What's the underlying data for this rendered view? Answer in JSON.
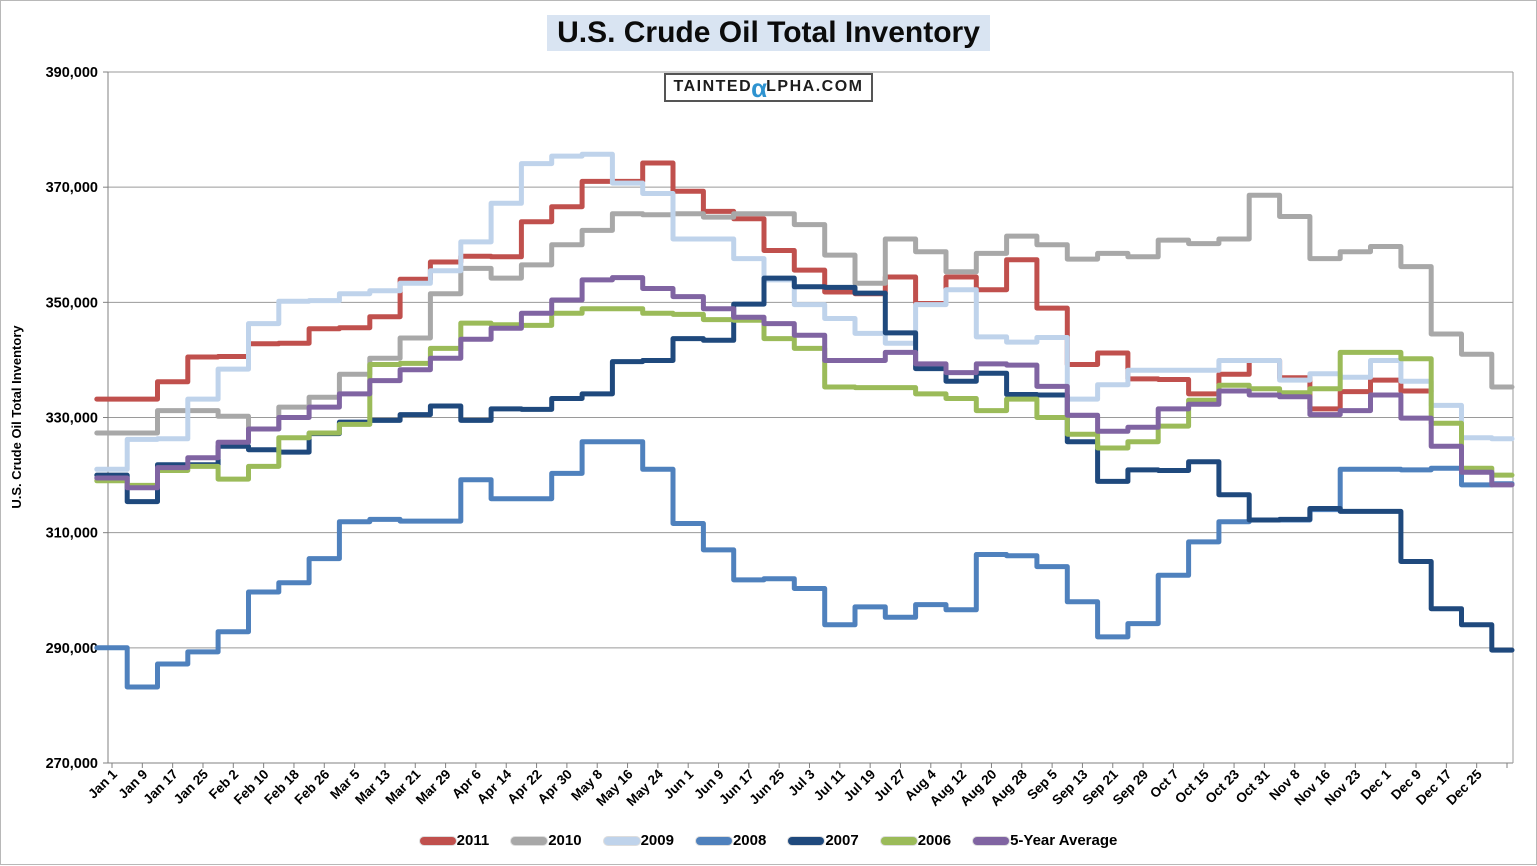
{
  "header": {
    "title": "U.S. Crude Oil Total Inventory",
    "watermark": {
      "prefix": "TAINTED",
      "alpha": "α",
      "suffix": "LPHA.COM"
    }
  },
  "colors": {
    "title_highlight": "#d9e4f2",
    "watermark_alpha": "#2e93d0",
    "gridline": "#9a9a9a",
    "axis": "#808080"
  },
  "chart_data": {
    "type": "line",
    "step": true,
    "title": "U.S. Crude Oil Total Inventory",
    "xlabel": "",
    "ylabel": "U.S. Crude Oil Total Inventory",
    "ylim": [
      270000,
      390000
    ],
    "ytick_step": 20000,
    "ytick_labels": [
      "390,000",
      "370,000",
      "350,000",
      "330,000",
      "310,000",
      "290,000",
      "270,000"
    ],
    "grid": "horizontal",
    "legend_position": "bottom",
    "categories": [
      "Jan 1",
      "Jan 9",
      "Jan 17",
      "Jan 25",
      "Feb 2",
      "Feb 10",
      "Feb 18",
      "Feb 26",
      "Mar 5",
      "Mar 13",
      "Mar 21",
      "Mar 29",
      "Apr 6",
      "Apr 14",
      "Apr 22",
      "Apr 30",
      "May 8",
      "May 16",
      "May 24",
      "Jun 1",
      "Jun 9",
      "Jun 17",
      "Jun 25",
      "Jul 3",
      "Jul 11",
      "Jul 19",
      "Jul 27",
      "Aug 4",
      "Aug 12",
      "Aug 20",
      "Aug 28",
      "Sep 5",
      "Sep 13",
      "Sep 21",
      "Sep 29",
      "Oct 7",
      "Oct 15",
      "Oct 23",
      "Oct 31",
      "Nov 8",
      "Nov 16",
      "Nov 23",
      "Dec 1",
      "Dec 9",
      "Dec 17",
      "Dec 25",
      ""
    ],
    "series": [
      {
        "name": "2011",
        "color": "#c0504d",
        "values": [
          333200,
          333200,
          336200,
          340500,
          340600,
          342800,
          342900,
          345400,
          345600,
          347500,
          354000,
          357000,
          358000,
          357900,
          364000,
          366600,
          371000,
          371000,
          374200,
          369300,
          365800,
          364500,
          359000,
          355600,
          351800,
          351500,
          354400,
          349800,
          354400,
          352200,
          357400,
          349000,
          339200,
          341200,
          336700,
          336600,
          334100,
          337500,
          339900,
          336900,
          331500,
          334500,
          336500,
          334600,
          null,
          null,
          null
        ]
      },
      {
        "name": "2010",
        "color": "#a8a8a8",
        "values": [
          327300,
          327300,
          331200,
          331200,
          330200,
          328000,
          331800,
          333500,
          337500,
          340300,
          343800,
          351500,
          355900,
          354200,
          356500,
          360000,
          362500,
          365400,
          365200,
          365400,
          364800,
          365400,
          365400,
          363500,
          358200,
          353300,
          361000,
          358800,
          355300,
          358500,
          361500,
          360000,
          357500,
          358500,
          357900,
          360800,
          360200,
          361000,
          368600,
          364900,
          357600,
          358800,
          359700,
          356200,
          344500,
          341000,
          335300
        ]
      },
      {
        "name": "2009",
        "color": "#bfd3eb",
        "values": [
          321000,
          326200,
          326300,
          333200,
          338400,
          346300,
          350200,
          350300,
          351500,
          352000,
          353300,
          355500,
          360500,
          367200,
          374100,
          375400,
          375700,
          370700,
          368900,
          361000,
          361000,
          357600,
          353900,
          349600,
          347200,
          344600,
          342900,
          349600,
          352200,
          344000,
          343100,
          343900,
          333200,
          335700,
          338200,
          338200,
          338200,
          339900,
          339900,
          336500,
          337600,
          337000,
          339900,
          336300,
          332100,
          326500,
          326300
        ]
      },
      {
        "name": "2008",
        "color": "#4f81bd",
        "values": [
          290000,
          283200,
          287200,
          289300,
          292800,
          299700,
          301300,
          305500,
          311900,
          312300,
          312000,
          312000,
          319200,
          315900,
          315900,
          320300,
          325800,
          325800,
          321000,
          311600,
          307000,
          301800,
          302000,
          300300,
          294000,
          297100,
          295300,
          297500,
          296600,
          306200,
          306000,
          304100,
          298000,
          291900,
          294200,
          302600,
          308400,
          311900,
          312200,
          312200,
          314000,
          321000,
          321000,
          320900,
          321200,
          318300,
          318500
        ]
      },
      {
        "name": "2007",
        "color": "#1f497d",
        "values": [
          320000,
          315400,
          321800,
          321800,
          325000,
          324400,
          324000,
          327200,
          329200,
          329500,
          330500,
          332000,
          329500,
          331500,
          331400,
          333300,
          334100,
          339700,
          339900,
          343700,
          343400,
          349700,
          354200,
          352700,
          352600,
          351600,
          344700,
          338500,
          336300,
          337700,
          334000,
          333900,
          325800,
          318900,
          320900,
          320800,
          322300,
          316600,
          312200,
          312300,
          314200,
          313700,
          313700,
          305000,
          296800,
          294000,
          289600
        ]
      },
      {
        "name": "2006",
        "color": "#9bbb59",
        "values": [
          319000,
          318200,
          320800,
          321500,
          319300,
          321500,
          326500,
          327300,
          328800,
          339200,
          339400,
          342000,
          346400,
          346100,
          346000,
          348100,
          348900,
          348900,
          348100,
          347900,
          347000,
          346900,
          343700,
          342000,
          335300,
          335200,
          335200,
          334100,
          333300,
          331200,
          333200,
          330000,
          327100,
          324700,
          325800,
          328500,
          333000,
          335600,
          335000,
          334300,
          335000,
          341300,
          341300,
          340200,
          329000,
          321200,
          320000
        ]
      },
      {
        "name": "5-Year Average",
        "color": "#8064a2",
        "values": [
          319500,
          317800,
          321300,
          323000,
          325700,
          328000,
          330000,
          331800,
          334100,
          336400,
          338300,
          340300,
          343600,
          345500,
          348100,
          350400,
          353900,
          354300,
          352400,
          351000,
          348900,
          347400,
          346300,
          344300,
          339900,
          339900,
          341300,
          339300,
          337800,
          339300,
          339100,
          335400,
          330400,
          327600,
          328300,
          331500,
          332300,
          334600,
          333900,
          333600,
          330500,
          331200,
          333900,
          329900,
          325000,
          320500,
          318300
        ]
      }
    ]
  }
}
